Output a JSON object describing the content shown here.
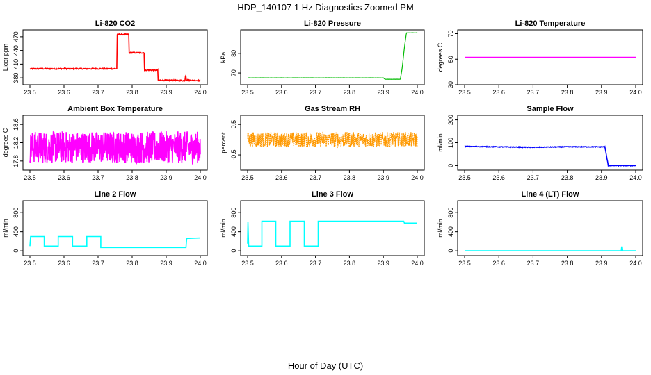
{
  "figure": {
    "title": "HDP_140107  1 Hz Diagnostics Zoomed PM",
    "xlabel": "Hour of Day (UTC)"
  },
  "chart_data": [
    {
      "type": "line",
      "title": "Li-820 CO2",
      "ylabel": "Licor ppm",
      "color": "#ff0000",
      "xlim": [
        23.5,
        24.0
      ],
      "xticks": [
        "23.5",
        "23.6",
        "23.7",
        "23.8",
        "23.9",
        "24.0"
      ],
      "ylim": [
        365,
        485
      ],
      "yticks": [
        380,
        410,
        440,
        470
      ],
      "x": [
        23.5,
        23.6,
        23.7,
        23.755,
        23.755,
        23.79,
        23.79,
        23.835,
        23.835,
        23.875,
        23.875,
        23.955,
        23.957,
        23.959,
        24.0
      ],
      "y": [
        400,
        400,
        400,
        400,
        475,
        475,
        435,
        435,
        397,
        397,
        375,
        374,
        390,
        375,
        374
      ],
      "noise": 1.2
    },
    {
      "type": "line",
      "title": "Li-820 Pressure",
      "ylabel": "kPa",
      "color": "#00bb00",
      "xlim": [
        23.5,
        24.0
      ],
      "xticks": [
        "23.5",
        "23.6",
        "23.7",
        "23.8",
        "23.9",
        "24.0"
      ],
      "ylim": [
        64,
        92
      ],
      "yticks": [
        70,
        80
      ],
      "x": [
        23.5,
        23.9,
        23.905,
        23.95,
        23.955,
        23.962,
        23.968,
        24.0
      ],
      "y": [
        67.5,
        67.5,
        66.8,
        66.8,
        72,
        83,
        90.5,
        90.5
      ],
      "noise": 0.05
    },
    {
      "type": "line",
      "title": "Li-820 Temperature",
      "ylabel": "degrees C",
      "color": "#ff00ff",
      "xlim": [
        23.5,
        24.0
      ],
      "xticks": [
        "23.5",
        "23.6",
        "23.7",
        "23.8",
        "23.9",
        "24.0"
      ],
      "ylim": [
        30,
        73
      ],
      "yticks": [
        30,
        50,
        70
      ],
      "x": [
        23.5,
        24.0
      ],
      "y": [
        51.5,
        51.5
      ],
      "noise": 0
    },
    {
      "type": "line",
      "title": "Ambient Box Temperature",
      "ylabel": "degrees C",
      "color": "#ff00ff",
      "xlim": [
        23.5,
        24.0
      ],
      "xticks": [
        "23.5",
        "23.6",
        "23.7",
        "23.8",
        "23.9",
        "24.0"
      ],
      "ylim": [
        17.6,
        18.8
      ],
      "yticks": [
        17.8,
        18.2,
        18.6
      ],
      "x": [
        23.5,
        24.0
      ],
      "y": [
        18.1,
        18.1
      ],
      "noise": 0.35
    },
    {
      "type": "line",
      "title": "Gas Stream RH",
      "ylabel": "percent",
      "color": "#ff9900",
      "xlim": [
        23.5,
        24.0
      ],
      "xticks": [
        "23.5",
        "23.6",
        "23.7",
        "23.8",
        "23.9",
        "24.0"
      ],
      "ylim": [
        -1.0,
        0.8
      ],
      "yticks": [
        -0.5,
        0.5
      ],
      "x": [
        23.5,
        24.0
      ],
      "y": [
        0.0,
        0.0
      ],
      "noise": 0.25
    },
    {
      "type": "line",
      "title": "Sample Flow",
      "ylabel": "ml/min",
      "color": "#0000ff",
      "xlim": [
        23.5,
        24.0
      ],
      "xticks": [
        "23.5",
        "23.6",
        "23.7",
        "23.8",
        "23.9",
        "24.0"
      ],
      "ylim": [
        -20,
        220
      ],
      "yticks": [
        0,
        100,
        200
      ],
      "x": [
        23.5,
        23.6,
        23.7,
        23.8,
        23.91,
        23.915,
        23.92,
        24.0
      ],
      "y": [
        84,
        82,
        80,
        82,
        82,
        40,
        0,
        0
      ],
      "noise": 1.5
    },
    {
      "type": "line",
      "title": "Line 2 Flow",
      "ylabel": "ml/min",
      "color": "#00ffff",
      "xlim": [
        23.5,
        24.0
      ],
      "xticks": [
        "23.5",
        "23.6",
        "23.7",
        "23.8",
        "23.9",
        "24.0"
      ],
      "ylim": [
        -100,
        1050
      ],
      "yticks": [
        0,
        400,
        800
      ],
      "x": [
        23.5,
        23.502,
        23.542,
        23.542,
        23.583,
        23.583,
        23.625,
        23.625,
        23.667,
        23.667,
        23.708,
        23.708,
        23.958,
        23.96,
        24.0
      ],
      "y": [
        100,
        300,
        300,
        100,
        100,
        300,
        300,
        100,
        100,
        300,
        300,
        70,
        70,
        260,
        270
      ],
      "noise": 0
    },
    {
      "type": "line",
      "title": "Line 3 Flow",
      "ylabel": "ml/min",
      "color": "#00ffff",
      "xlim": [
        23.5,
        24.0
      ],
      "xticks": [
        "23.5",
        "23.6",
        "23.7",
        "23.8",
        "23.9",
        "24.0"
      ],
      "ylim": [
        -100,
        1050
      ],
      "yticks": [
        0,
        400,
        800
      ],
      "x": [
        23.5,
        23.501,
        23.503,
        23.542,
        23.542,
        23.583,
        23.583,
        23.625,
        23.625,
        23.667,
        23.667,
        23.708,
        23.708,
        23.96,
        23.962,
        24.0
      ],
      "y": [
        150,
        600,
        100,
        100,
        620,
        620,
        100,
        100,
        620,
        620,
        100,
        100,
        620,
        620,
        580,
        580
      ],
      "noise": 0
    },
    {
      "type": "line",
      "title": "Line 4 (LT) Flow",
      "ylabel": "ml/min",
      "color": "#00ffff",
      "xlim": [
        23.5,
        24.0
      ],
      "xticks": [
        "23.5",
        "23.6",
        "23.7",
        "23.8",
        "23.9",
        "24.0"
      ],
      "ylim": [
        -100,
        1050
      ],
      "yticks": [
        0,
        400,
        800
      ],
      "x": [
        23.5,
        23.958,
        23.959,
        23.961,
        23.962,
        24.0
      ],
      "y": [
        0,
        0,
        80,
        80,
        0,
        0
      ],
      "noise": 0
    }
  ]
}
